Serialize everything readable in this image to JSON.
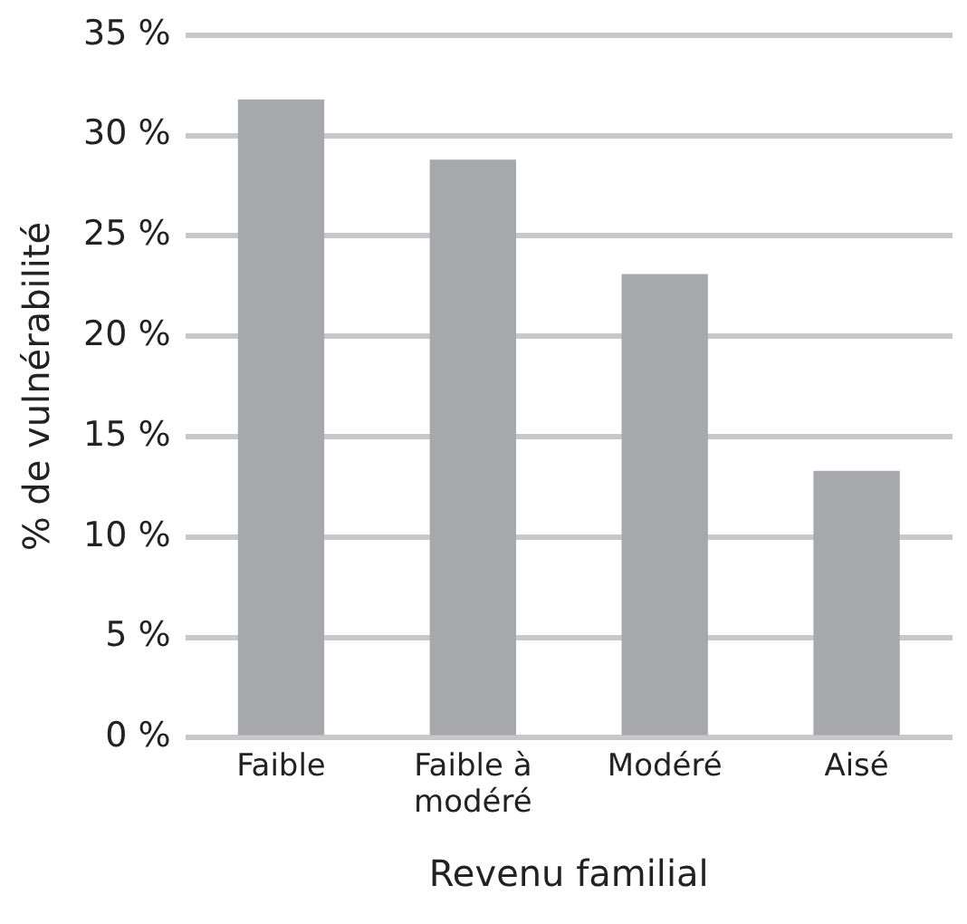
{
  "chart_data": {
    "type": "bar",
    "xlabel": "Revenu familial",
    "ylabel": "% de vulnérabilité",
    "categories": [
      "Faible",
      "Faible à modéré",
      "Modéré",
      "Aisé"
    ],
    "values": [
      31.8,
      28.8,
      23.1,
      13.3
    ],
    "color": "#a7a8ab",
    "ylim": [
      0,
      35
    ],
    "yticks": [
      {
        "value": 0,
        "label": "0 %"
      },
      {
        "value": 5,
        "label": "5 %"
      },
      {
        "value": 10,
        "label": "10 %"
      },
      {
        "value": 15,
        "label": "15 %"
      },
      {
        "value": 20,
        "label": "20 %"
      },
      {
        "value": 25,
        "label": "25 %"
      },
      {
        "value": 30,
        "label": "30 %"
      },
      {
        "value": 35,
        "label": "35 %"
      }
    ],
    "grid": "y",
    "legend": false
  }
}
